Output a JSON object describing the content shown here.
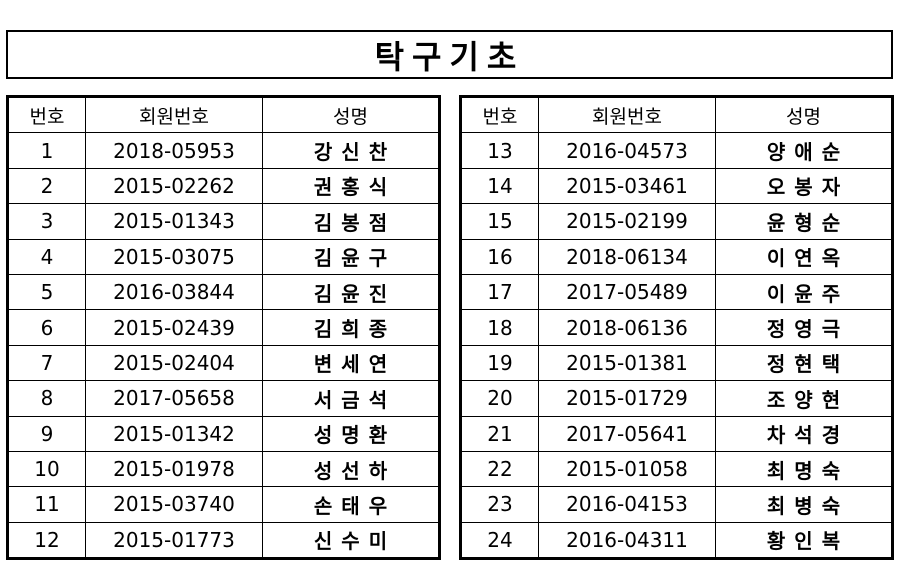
{
  "title": "탁구기초",
  "headers": {
    "no": "번호",
    "member_id": "회원번호",
    "name": "성명"
  },
  "left_rows": [
    {
      "no": "1",
      "member_id": "2018-05953",
      "name": "강신찬"
    },
    {
      "no": "2",
      "member_id": "2015-02262",
      "name": "권홍식"
    },
    {
      "no": "3",
      "member_id": "2015-01343",
      "name": "김봉점"
    },
    {
      "no": "4",
      "member_id": "2015-03075",
      "name": "김윤구"
    },
    {
      "no": "5",
      "member_id": "2016-03844",
      "name": "김윤진"
    },
    {
      "no": "6",
      "member_id": "2015-02439",
      "name": "김희종"
    },
    {
      "no": "7",
      "member_id": "2015-02404",
      "name": "변세연"
    },
    {
      "no": "8",
      "member_id": "2017-05658",
      "name": "서금석"
    },
    {
      "no": "9",
      "member_id": "2015-01342",
      "name": "성명환"
    },
    {
      "no": "10",
      "member_id": "2015-01978",
      "name": "성선하"
    },
    {
      "no": "11",
      "member_id": "2015-03740",
      "name": "손태우"
    },
    {
      "no": "12",
      "member_id": "2015-01773",
      "name": "신수미"
    }
  ],
  "right_rows": [
    {
      "no": "13",
      "member_id": "2016-04573",
      "name": "양애순"
    },
    {
      "no": "14",
      "member_id": "2015-03461",
      "name": "오봉자"
    },
    {
      "no": "15",
      "member_id": "2015-02199",
      "name": "윤형순"
    },
    {
      "no": "16",
      "member_id": "2018-06134",
      "name": "이연옥"
    },
    {
      "no": "17",
      "member_id": "2017-05489",
      "name": "이윤주"
    },
    {
      "no": "18",
      "member_id": "2018-06136",
      "name": "정영극"
    },
    {
      "no": "19",
      "member_id": "2015-01381",
      "name": "정현택"
    },
    {
      "no": "20",
      "member_id": "2015-01729",
      "name": "조양현"
    },
    {
      "no": "21",
      "member_id": "2017-05641",
      "name": "차석경"
    },
    {
      "no": "22",
      "member_id": "2015-01058",
      "name": "최명숙"
    },
    {
      "no": "23",
      "member_id": "2016-04153",
      "name": "최병숙"
    },
    {
      "no": "24",
      "member_id": "2016-04311",
      "name": "황인복"
    }
  ]
}
